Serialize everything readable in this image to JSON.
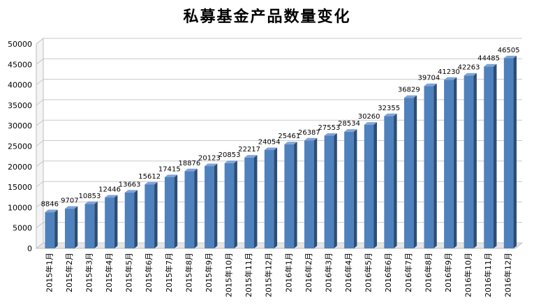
{
  "chart_data": {
    "type": "bar",
    "title": "私募基金产品数量变化",
    "xlabel": "",
    "ylabel": "",
    "ylim": [
      0,
      50000
    ],
    "yticks": [
      0,
      5000,
      10000,
      15000,
      20000,
      25000,
      30000,
      35000,
      40000,
      45000,
      50000
    ],
    "grid": true,
    "legend": "none",
    "categories": [
      "2015年1月",
      "2015年2月",
      "2015年3月",
      "2015年4月",
      "2015年5月",
      "2015年6月",
      "2015年7月",
      "2015年8月",
      "2015年9月",
      "2015年10月",
      "2015年11月",
      "2015年12月",
      "2016年1月",
      "2016年2月",
      "2016年3月",
      "2016年4月",
      "2016年5月",
      "2016年6月",
      "2016年7月",
      "2016年8月",
      "2016年9月",
      "2016年10月",
      "2016年11月",
      "2016年12月"
    ],
    "values": [
      8846,
      9707,
      10853,
      12446,
      13663,
      15612,
      17415,
      18876,
      20123,
      20853,
      22217,
      24054,
      25461,
      26387,
      27553,
      28534,
      30260,
      32355,
      36829,
      39704,
      41230,
      42263,
      44485,
      46505
    ],
    "colors": {
      "bar_front": "#4f81bd",
      "bar_side": "#2c4d75",
      "bar_top": "#7ea3d6",
      "grid": "#c8c8c8",
      "wall": "#ffffff",
      "floor": "#e6e6e6"
    }
  }
}
